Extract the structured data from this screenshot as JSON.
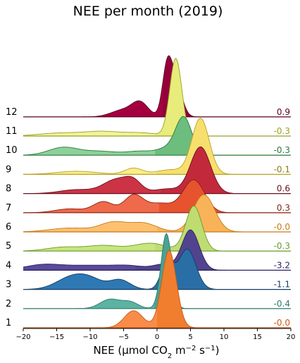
{
  "chart_data": {
    "type": "area",
    "subtype": "ridgeline",
    "title": "NEE per month (2019)",
    "xlabel": "NEE (µmol CO₂ m⁻² s⁻¹)",
    "xlabel_parts": {
      "main": "NEE (µmol CO",
      "sub": "2",
      "mid": " m",
      "sup1": "−2",
      "mid2": " s",
      "sup2": "−1",
      "end": ")"
    },
    "xlim": [
      -20,
      20
    ],
    "xticks": [
      -20,
      -15,
      -10,
      -5,
      0,
      5,
      10,
      15,
      20
    ],
    "xtick_labels": [
      "−20",
      "−15",
      "−10",
      "−5",
      "0",
      "5",
      "10",
      "15",
      "20"
    ],
    "grid": false,
    "rows": [
      {
        "month": "1",
        "median": "-0.0",
        "fill": "#f98c48",
        "fill_dark": "#f07e2e",
        "edge": "#c75a1b",
        "text_color": "#c75a1b",
        "peaks": [
          [
            -3.5,
            1.4,
            0.22
          ],
          [
            1.8,
            1.1,
            1.0
          ]
        ]
      },
      {
        "month": "2",
        "median": "-0.4",
        "fill": "#5bb3a2",
        "fill_dark": "#4aa293",
        "edge": "#2b7a6a",
        "text_color": "#2b7a6a",
        "peaks": [
          [
            -7.0,
            1.5,
            0.12
          ],
          [
            -4.0,
            1.2,
            0.08
          ],
          [
            1.4,
            0.8,
            0.97
          ]
        ]
      },
      {
        "month": "3",
        "median": "-1.1",
        "fill": "#2e78b4",
        "fill_dark": "#2a6ea6",
        "edge": "#143c63",
        "text_color": "#143c63",
        "peaks": [
          [
            -13.0,
            2.2,
            0.14
          ],
          [
            -10.0,
            2.0,
            0.12
          ],
          [
            -5.5,
            1.5,
            0.12
          ],
          [
            1.5,
            0.9,
            0.35
          ],
          [
            4.5,
            1.3,
            0.52
          ]
        ]
      },
      {
        "month": "4",
        "median": "-3.2",
        "fill": "#5a4a9a",
        "fill_dark": "#52438e",
        "edge": "#2d2260",
        "text_color": "#2d2260",
        "peaks": [
          [
            -17.0,
            2.8,
            0.07
          ],
          [
            -10.0,
            3.5,
            0.06
          ],
          [
            -4.0,
            2.5,
            0.05
          ],
          [
            1.0,
            1.5,
            0.07
          ],
          [
            5.0,
            1.3,
            0.52
          ]
        ]
      },
      {
        "month": "5",
        "median": "-0.3",
        "fill": "#c8e57e",
        "fill_dark": "#bfdc72",
        "edge": "#6a9a2a",
        "text_color": "#6a9a2a",
        "peaks": [
          [
            -14.0,
            2.5,
            0.05
          ],
          [
            -8.0,
            2.5,
            0.07
          ],
          [
            -1.0,
            2.5,
            0.1
          ],
          [
            5.5,
            1.2,
            0.58
          ]
        ]
      },
      {
        "month": "6",
        "median": "-0.0",
        "fill": "#fcc070",
        "fill_dark": "#f8b358",
        "edge": "#c77a1a",
        "text_color": "#c77a1a",
        "peaks": [
          [
            -13.0,
            3.0,
            0.05
          ],
          [
            -6.5,
            2.0,
            0.12
          ],
          [
            -2.0,
            2.0,
            0.11
          ],
          [
            7.0,
            1.6,
            0.48
          ]
        ]
      },
      {
        "month": "7",
        "median": "0.3",
        "fill": "#ee6a4a",
        "fill_dark": "#e6532e",
        "edge": "#8a1f0e",
        "text_color": "#8a1f0e",
        "peaks": [
          [
            -13.0,
            2.2,
            0.05
          ],
          [
            -8.0,
            1.5,
            0.14
          ],
          [
            -3.5,
            1.4,
            0.22
          ],
          [
            0.5,
            2.0,
            0.12
          ],
          [
            5.5,
            1.6,
            0.42
          ]
        ]
      },
      {
        "month": "8",
        "median": "0.6",
        "fill": "#cc3345",
        "fill_dark": "#c22a3c",
        "edge": "#6a0e1e",
        "text_color": "#6a0e1e",
        "peaks": [
          [
            -12.0,
            2.5,
            0.05
          ],
          [
            -6.0,
            2.0,
            0.18
          ],
          [
            -3.5,
            1.2,
            0.12
          ],
          [
            1.5,
            2.0,
            0.06
          ],
          [
            6.5,
            1.5,
            0.6
          ]
        ]
      },
      {
        "month": "9",
        "median": "-0.1",
        "fill": "#fdec8a",
        "fill_dark": "#f7df6e",
        "edge": "#b8a220",
        "text_color": "#8a7a10",
        "peaks": [
          [
            -12.0,
            3.0,
            0.04
          ],
          [
            -3.5,
            1.3,
            0.08
          ],
          [
            2.0,
            2.0,
            0.06
          ],
          [
            6.5,
            1.3,
            0.72
          ]
        ]
      },
      {
        "month": "10",
        "median": "-0.3",
        "fill": "#8ed09a",
        "fill_dark": "#6dbd7e",
        "edge": "#2a7a3a",
        "text_color": "#2a7a3a",
        "peaks": [
          [
            -14.0,
            2.2,
            0.1
          ],
          [
            -8.5,
            2.5,
            0.05
          ],
          [
            -2.5,
            2.0,
            0.05
          ],
          [
            1.5,
            1.5,
            0.08
          ],
          [
            4.0,
            1.2,
            0.48
          ]
        ]
      },
      {
        "month": "11",
        "median": "-0.3",
        "fill": "#f0f39e",
        "fill_dark": "#e8ec7a",
        "edge": "#9aa020",
        "text_color": "#9aa020",
        "peaks": [
          [
            -14.0,
            3.5,
            0.04
          ],
          [
            -8.0,
            2.5,
            0.05
          ],
          [
            -2.5,
            2.5,
            0.04
          ],
          [
            2.8,
            0.9,
            1.0
          ]
        ]
      },
      {
        "month": "12",
        "median": "0.9",
        "fill": "#a4003f",
        "fill_dark": "#94003a",
        "edge": "#5a0020",
        "text_color": "#5a0020",
        "peaks": [
          [
            -5.0,
            1.8,
            0.09
          ],
          [
            -2.5,
            1.2,
            0.17
          ],
          [
            1.5,
            0.7,
            0.6
          ],
          [
            2.8,
            0.9,
            0.45
          ]
        ]
      }
    ]
  }
}
